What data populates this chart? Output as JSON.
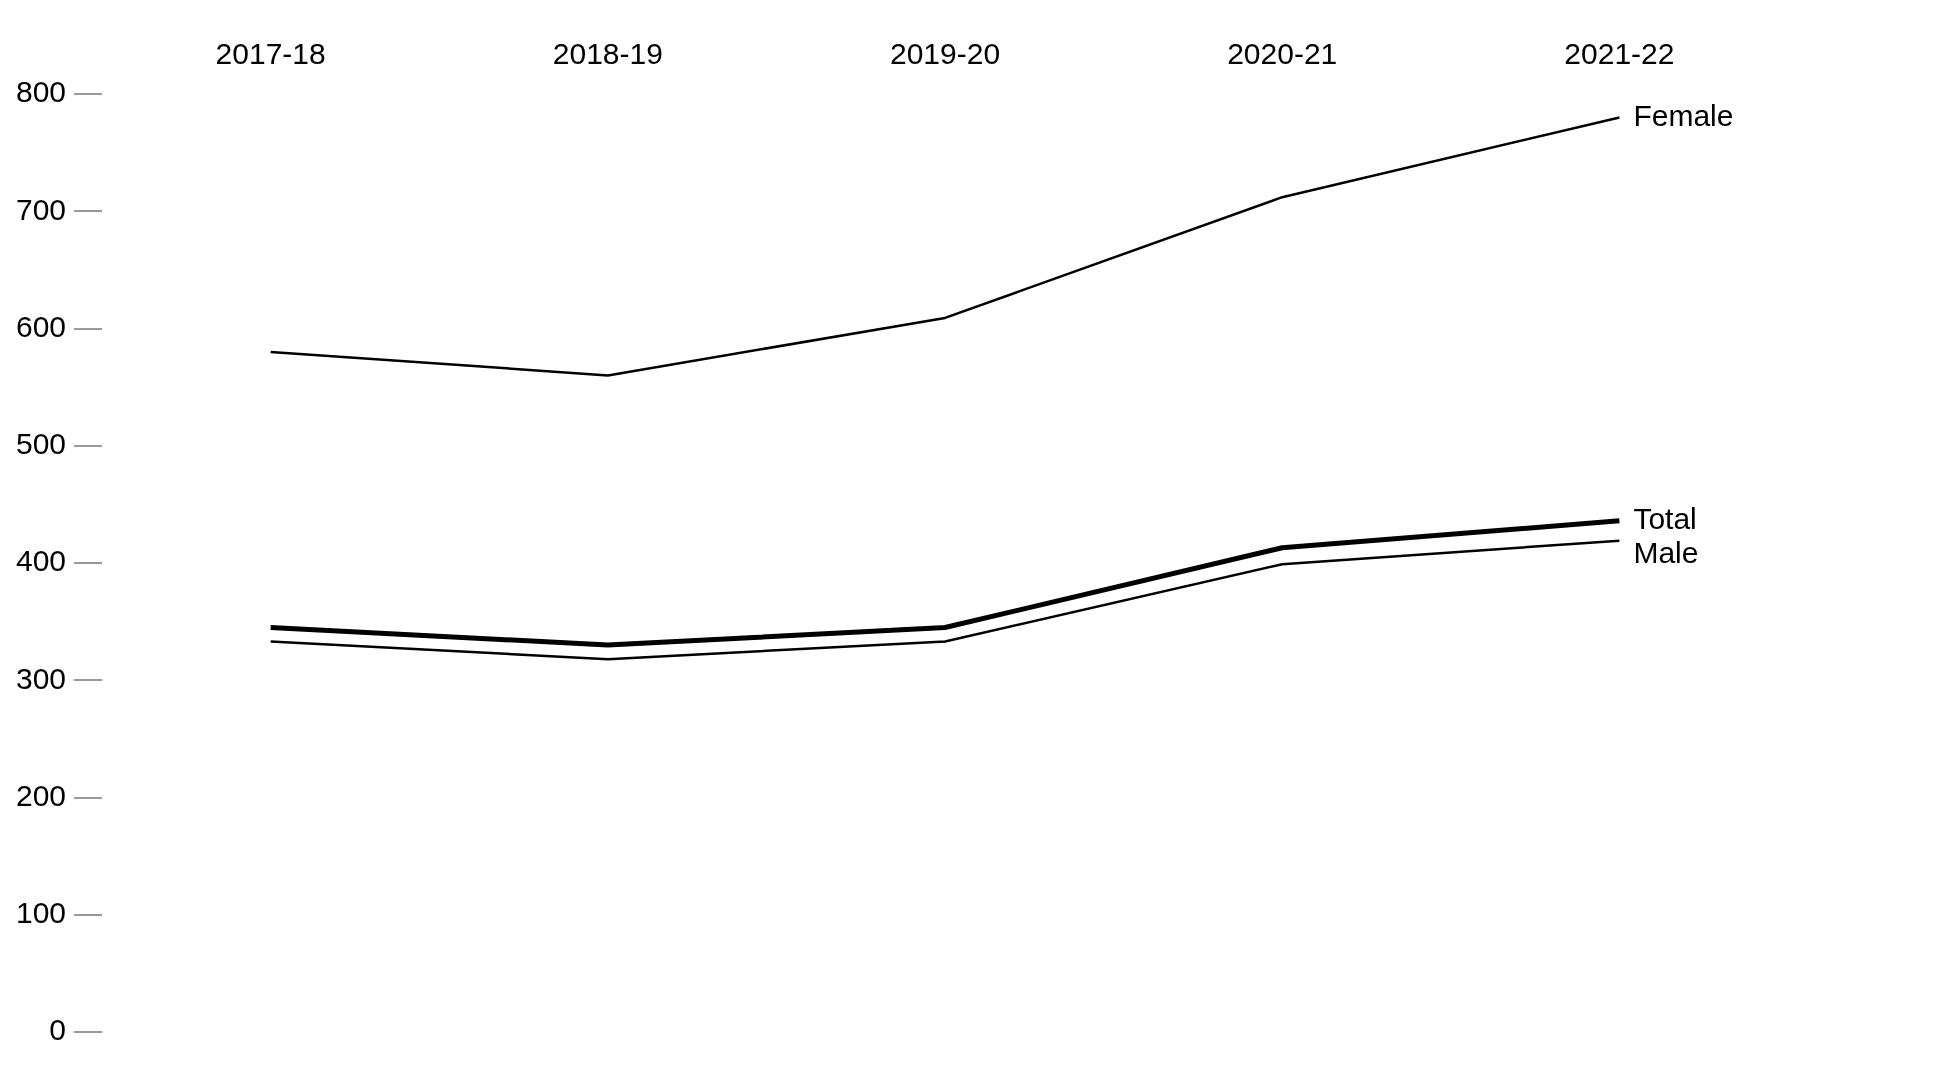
{
  "chart_data": {
    "type": "line",
    "categories": [
      "2017-18",
      "2018-19",
      "2019-20",
      "2020-21",
      "2021-22"
    ],
    "series": [
      {
        "name": "Female",
        "color": "#000000",
        "values": [
          580,
          560,
          609,
          712,
          780
        ]
      },
      {
        "name": "Total",
        "color": "#000000",
        "values": [
          345,
          330,
          345,
          413,
          436
        ]
      },
      {
        "name": "Male",
        "color": "#000000",
        "values": [
          333,
          318,
          333,
          399,
          419
        ]
      }
    ],
    "ylim": [
      0,
      800
    ],
    "yticks": [
      0,
      100,
      200,
      300,
      400,
      500,
      600,
      700,
      800
    ],
    "grid": false,
    "legend": false,
    "marker": "none",
    "line_style": "solid"
  }
}
